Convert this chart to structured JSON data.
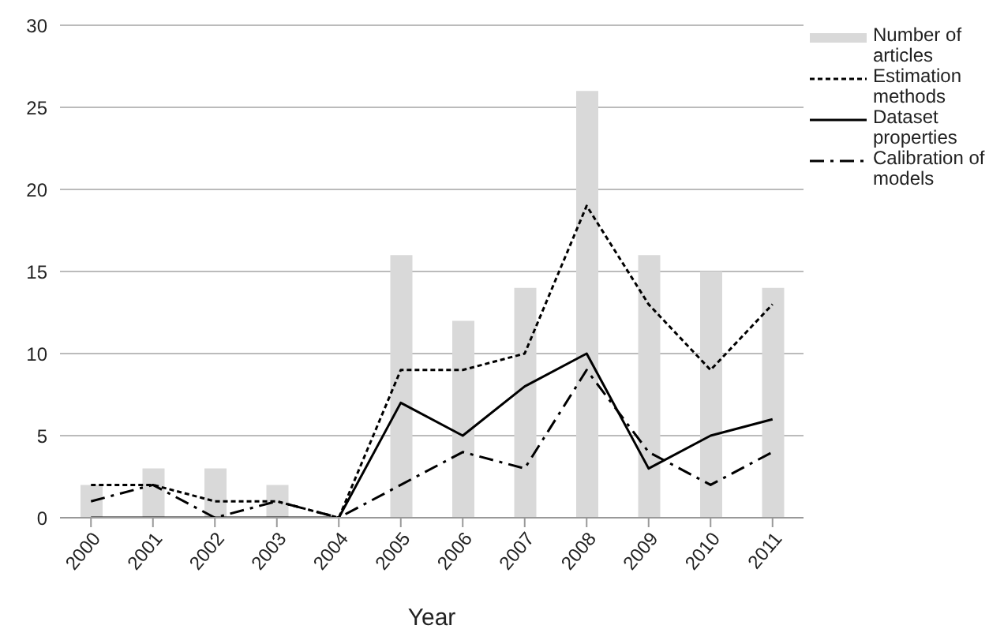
{
  "chart_data": {
    "type": "bar",
    "categories": [
      "2000",
      "2001",
      "2002",
      "2003",
      "2004",
      "2005",
      "2006",
      "2007",
      "2008",
      "2009",
      "2010",
      "2011"
    ],
    "xlabel": "Year",
    "ylim": [
      0,
      30
    ],
    "yticks": [
      0,
      5,
      10,
      15,
      20,
      25,
      30
    ],
    "grid": "y",
    "legend": "top right",
    "series": [
      {
        "name": "Number of articles",
        "color": "#d9d9d9",
        "values": [
          2,
          3,
          3,
          2,
          0,
          16,
          12,
          14,
          26,
          16,
          15,
          14
        ]
      },
      {
        "name": "Estimation methods",
        "type": "line",
        "color": "#000000",
        "line_style": "dashed",
        "values": [
          2,
          2,
          1,
          1,
          0,
          9,
          9,
          10,
          19,
          13,
          9,
          13
        ]
      },
      {
        "name": "Dataset properties",
        "type": "line",
        "color": "#000000",
        "line_style": "solid",
        "values": [
          0,
          0,
          0,
          0,
          0,
          7,
          5,
          8,
          10,
          3,
          5,
          6
        ]
      },
      {
        "name": "Calibration of models",
        "type": "line",
        "color": "#000000",
        "line_style": "dashdot",
        "values": [
          1,
          2,
          0,
          1,
          0,
          2,
          4,
          3,
          9,
          4,
          2,
          4
        ]
      }
    ]
  }
}
